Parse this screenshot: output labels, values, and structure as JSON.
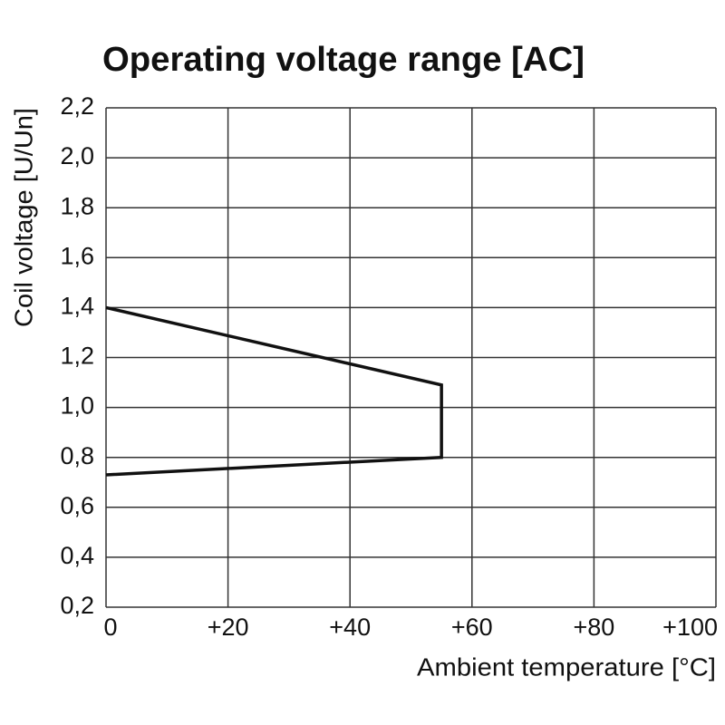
{
  "chart_data": {
    "type": "line",
    "title": "Operating voltage range [AC]",
    "xlabel": "Ambient temperature [°C]",
    "ylabel": "Coil voltage [U/Un]",
    "x": [
      0,
      55,
      55,
      0
    ],
    "values": [
      1.4,
      1.09,
      0.8,
      0.73
    ],
    "color": "#111111",
    "xlim": [
      0,
      100
    ],
    "xticks": [
      0,
      {
        "value": 20,
        "label": "+20"
      },
      {
        "value": 40,
        "label": "+40"
      },
      {
        "value": 60,
        "label": "+60"
      },
      {
        "value": 80,
        "label": "+80"
      },
      {
        "value": 100,
        "label": "+100"
      }
    ],
    "ylim": [
      0.2,
      2.2
    ],
    "yticks": [
      {
        "value": 0.2,
        "label": "0,2"
      },
      {
        "value": 0.4,
        "label": "0,4"
      },
      {
        "value": 0.6,
        "label": "0,6"
      },
      {
        "value": 0.8,
        "label": "0,8"
      },
      {
        "value": 1.0,
        "label": "1,0"
      },
      {
        "value": 1.2,
        "label": "1,2"
      },
      {
        "value": 1.4,
        "label": "1,4"
      },
      {
        "value": 1.6,
        "label": "1,6"
      },
      {
        "value": 1.8,
        "label": "1,8"
      },
      {
        "value": 2.0,
        "label": "2,0"
      },
      {
        "value": 2.2,
        "label": "2,2"
      }
    ],
    "grid": true
  }
}
